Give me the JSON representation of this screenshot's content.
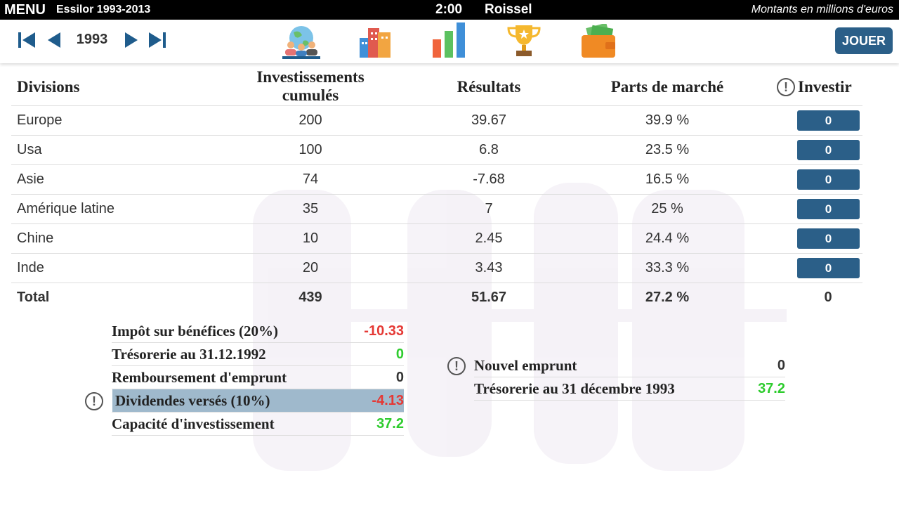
{
  "top_bar": {
    "menu": "MENU",
    "game": "Essilor 1993-2013",
    "time": "2:00",
    "player": "Roissel",
    "units": "Montants en millions d'euros"
  },
  "nav": {
    "year": "1993",
    "play": "JOUER"
  },
  "table": {
    "headers": [
      "Divisions",
      "Investissements cumulés",
      "Résultats",
      "Parts de marché",
      "Investir"
    ],
    "rows": [
      [
        "Europe",
        "200",
        "39.67",
        "39.9 %",
        "0"
      ],
      [
        "Usa",
        "100",
        "6.8",
        "23.5 %",
        "0"
      ],
      [
        "Asie",
        "74",
        "-7.68",
        "16.5 %",
        "0"
      ],
      [
        "Amérique latine",
        "35",
        "7",
        "25 %",
        "0"
      ],
      [
        "Chine",
        "10",
        "2.45",
        "24.4 %",
        "0"
      ],
      [
        "Inde",
        "20",
        "3.43",
        "33.3 %",
        "0"
      ]
    ],
    "total": [
      "Total",
      "439",
      "51.67",
      "27.2 %",
      "0"
    ]
  },
  "summary_left": [
    {
      "label": "Impôt sur bénéfices (20%)",
      "value": "-10.33"
    },
    {
      "label": "Trésorerie au 31.12.1992",
      "value": "0"
    },
    {
      "label": "Remboursement d'emprunt",
      "value": "0"
    },
    {
      "label": "Dividendes versés (10%)",
      "value": "-4.13"
    },
    {
      "label": "Capacité d'investissement",
      "value": "37.2"
    }
  ],
  "summary_right": [
    {
      "label": "Nouvel emprunt",
      "value": "0"
    },
    {
      "label": "Trésorerie au 31 décembre 1993",
      "value": "37.2"
    }
  ]
}
